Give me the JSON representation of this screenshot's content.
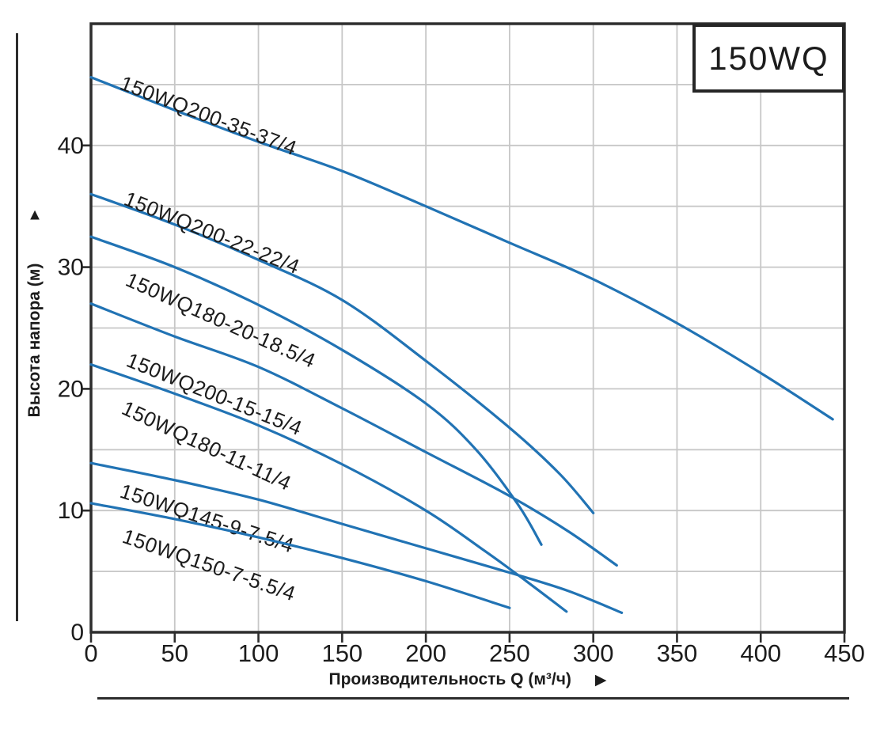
{
  "title_box": {
    "label": "150WQ"
  },
  "y_axis": {
    "title": "Высота напора (м)",
    "arrow": "▲",
    "ticks": [
      0,
      10,
      20,
      30,
      40
    ],
    "range": [
      0,
      50
    ],
    "grid_step": 5
  },
  "x_axis": {
    "title": "Производительность Q (м³/ч)",
    "arrow": "▶",
    "ticks": [
      0,
      50,
      100,
      150,
      200,
      250,
      300,
      350,
      400,
      450
    ],
    "range": [
      0,
      450
    ],
    "grid_step": 50
  },
  "colors": {
    "curve": "#2173b4",
    "grid": "#c7c7c7",
    "axis": "#2d2d2d",
    "text": "#1c1c1c"
  },
  "chart_data": {
    "type": "line",
    "title": "150WQ",
    "xlabel": "Производительность Q (м³/ч)",
    "ylabel": "Высота напора (м)",
    "xlim": [
      0,
      450
    ],
    "ylim": [
      0,
      50
    ],
    "grid": true,
    "legend_position": "inline-curve-labels",
    "series": [
      {
        "name": "150WQ200-35-37/4",
        "points": [
          [
            0,
            45.6
          ],
          [
            50,
            42.9
          ],
          [
            100,
            40.3
          ],
          [
            150,
            37.9
          ],
          [
            200,
            35.0
          ],
          [
            250,
            32.0
          ],
          [
            300,
            29.0
          ],
          [
            350,
            25.4
          ],
          [
            400,
            21.3
          ],
          [
            443,
            17.5
          ]
        ]
      },
      {
        "name": "150WQ200-22-22/4",
        "points": [
          [
            0,
            36.0
          ],
          [
            50,
            33.5
          ],
          [
            100,
            30.6
          ],
          [
            150,
            27.3
          ],
          [
            200,
            22.3
          ],
          [
            250,
            16.8
          ],
          [
            280,
            13.0
          ],
          [
            300,
            9.8
          ]
        ]
      },
      {
        "name": "150WQ180-20-18.5/4",
        "points": [
          [
            0,
            32.5
          ],
          [
            50,
            30.0
          ],
          [
            100,
            26.9
          ],
          [
            150,
            23.2
          ],
          [
            200,
            18.8
          ],
          [
            230,
            15.0
          ],
          [
            255,
            10.5
          ],
          [
            269,
            7.2
          ]
        ]
      },
      {
        "name": "150WQ200-15-15/4",
        "points": [
          [
            0,
            27.0
          ],
          [
            50,
            24.3
          ],
          [
            100,
            21.8
          ],
          [
            150,
            18.4
          ],
          [
            200,
            14.8
          ],
          [
            250,
            11.2
          ],
          [
            285,
            8.3
          ],
          [
            314,
            5.5
          ]
        ]
      },
      {
        "name": "150WQ180-11-11/4",
        "points": [
          [
            0,
            22.0
          ],
          [
            50,
            19.6
          ],
          [
            100,
            17.0
          ],
          [
            150,
            13.8
          ],
          [
            200,
            10.0
          ],
          [
            235,
            6.7
          ],
          [
            260,
            4.2
          ],
          [
            284,
            1.7
          ]
        ]
      },
      {
        "name": "150WQ145-9-7.5/4",
        "points": [
          [
            0,
            13.9
          ],
          [
            50,
            12.5
          ],
          [
            100,
            10.9
          ],
          [
            150,
            8.9
          ],
          [
            200,
            6.9
          ],
          [
            250,
            4.9
          ],
          [
            285,
            3.4
          ],
          [
            317,
            1.6
          ]
        ]
      },
      {
        "name": "150WQ150-7-5.5/4",
        "points": [
          [
            0,
            10.6
          ],
          [
            50,
            9.3
          ],
          [
            100,
            7.8
          ],
          [
            150,
            6.1
          ],
          [
            200,
            4.2
          ],
          [
            250,
            2.0
          ]
        ]
      }
    ]
  }
}
